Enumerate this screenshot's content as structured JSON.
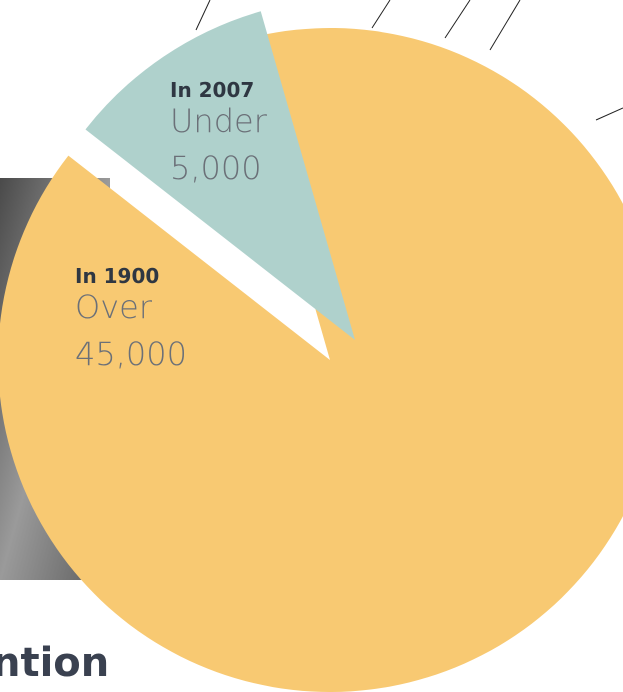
{
  "chart_data": {
    "type": "pie",
    "categories": [
      "In 1900",
      "In 2007"
    ],
    "qualifiers": [
      "Over",
      "Under"
    ],
    "values": [
      45000,
      5000
    ],
    "value_labels": [
      "45,000",
      "5,000"
    ],
    "colors": [
      "#f8c972",
      "#afd1cc"
    ],
    "heading": "ntion"
  }
}
